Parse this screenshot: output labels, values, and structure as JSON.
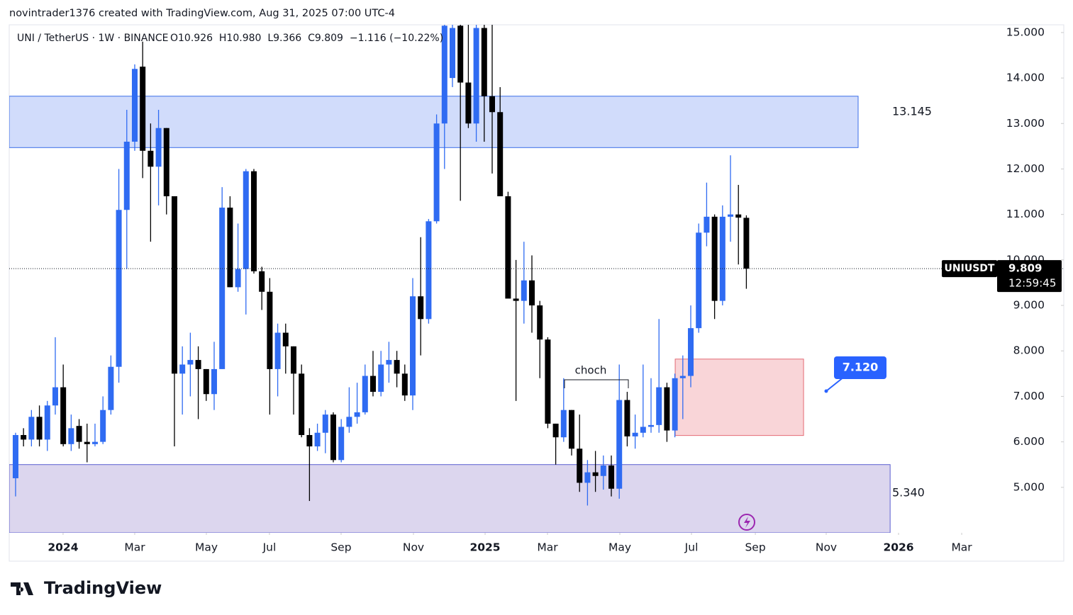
{
  "header": {
    "credit": "novintrader1376 created with TradingView.com, Aug 31, 2025 07:00 UTC-4",
    "brand": "TradingView"
  },
  "chart_data": {
    "type": "candlestick",
    "symbol": "UNI / TetherUS · 1W · BINANCE",
    "ohlc_text": "O10.926  H10.980  L9.366  C9.809  −1.116 (−10.22%)",
    "categories": [
      null,
      null,
      null,
      null,
      null,
      null,
      null,
      null,
      null,
      null,
      null,
      null,
      null,
      null,
      null,
      null,
      null,
      null,
      null,
      null,
      null,
      null,
      null,
      null,
      null,
      null,
      null,
      null,
      null,
      null,
      null,
      null,
      null,
      null,
      null,
      null,
      null,
      null,
      null,
      null,
      null,
      null,
      null,
      null,
      null,
      null,
      null,
      null,
      null,
      null,
      null,
      null,
      null,
      null,
      null,
      null,
      null,
      null,
      null,
      null,
      null,
      null,
      null,
      null,
      null,
      null,
      null,
      null,
      null,
      null,
      null,
      null,
      null,
      null,
      null,
      null,
      null,
      null,
      null,
      null,
      null,
      null,
      null,
      null,
      null,
      null,
      null,
      null,
      null,
      null,
      null,
      null,
      null
    ],
    "open": [
      5.2,
      6.15,
      6.05,
      6.55,
      6.05,
      6.8,
      7.2,
      5.95,
      6.35,
      6.0,
      5.95,
      6.0,
      6.7,
      7.65,
      11.1,
      12.6,
      14.25,
      12.4,
      12.05,
      12.9,
      11.4,
      7.5,
      7.7,
      7.8,
      7.6,
      7.05,
      7.6,
      11.15,
      9.4,
      9.8,
      11.95,
      9.75,
      9.3,
      7.6,
      8.4,
      8.1,
      7.5,
      6.15,
      5.9,
      6.2,
      6.6,
      5.6,
      6.33,
      6.55,
      6.65,
      7.45,
      7.1,
      7.7,
      7.8,
      7.5,
      7.02,
      9.2,
      8.7,
      10.85,
      13.0,
      14.0,
      15.15,
      13.9,
      13.0,
      15.1,
      13.6,
      13.25,
      11.4,
      9.15,
      9.1,
      9.55,
      9.0,
      8.25,
      6.4,
      6.1,
      6.7,
      5.85,
      5.1,
      5.33,
      5.25,
      5.48,
      4.97,
      6.92,
      6.12,
      6.2,
      6.33,
      6.37,
      7.2,
      6.25,
      7.4,
      7.45,
      8.5,
      10.6,
      10.95,
      9.1,
      10.95,
      11.0,
      10.926
    ],
    "high": [
      6.2,
      6.3,
      6.7,
      6.8,
      6.9,
      8.3,
      7.7,
      6.6,
      6.5,
      6.4,
      6.4,
      7.0,
      7.9,
      12.0,
      13.3,
      14.3,
      14.8,
      13.0,
      13.3,
      12.9,
      11.4,
      8.1,
      8.4,
      8.1,
      7.6,
      8.2,
      11.6,
      11.4,
      10.8,
      12.0,
      12.0,
      9.85,
      9.6,
      8.6,
      8.6,
      8.1,
      7.7,
      6.3,
      6.4,
      6.7,
      6.65,
      6.5,
      7.2,
      7.3,
      7.7,
      8.0,
      8.0,
      8.2,
      8.0,
      7.7,
      9.6,
      10.5,
      10.9,
      13.2,
      15.2,
      15.2,
      15.3,
      15.2,
      15.2,
      15.2,
      15.2,
      13.8,
      11.5,
      10.0,
      10.4,
      10.1,
      9.1,
      8.3,
      6.4,
      7.4,
      6.7,
      6.6,
      5.6,
      5.8,
      5.7,
      5.7,
      7.7,
      7.1,
      6.6,
      7.7,
      7.4,
      8.7,
      7.3,
      7.5,
      7.9,
      9.0,
      10.8,
      11.7,
      11.0,
      11.2,
      12.3,
      11.65,
      10.98
    ],
    "low": [
      4.8,
      5.9,
      5.9,
      5.9,
      5.8,
      6.6,
      5.9,
      5.8,
      5.85,
      5.55,
      5.9,
      5.95,
      6.6,
      7.3,
      9.8,
      12.4,
      11.8,
      10.4,
      11.2,
      11.0,
      5.9,
      6.6,
      7.0,
      6.5,
      6.9,
      6.7,
      7.6,
      9.4,
      9.3,
      8.8,
      9.7,
      8.9,
      6.6,
      7.0,
      7.5,
      6.6,
      6.1,
      4.7,
      5.8,
      5.75,
      5.55,
      5.55,
      6.2,
      6.4,
      6.6,
      7.0,
      7.0,
      7.3,
      7.2,
      6.9,
      6.7,
      7.9,
      8.6,
      10.8,
      12.0,
      13.8,
      11.3,
      12.9,
      12.6,
      12.6,
      11.9,
      11.4,
      9.2,
      6.9,
      8.6,
      8.4,
      7.4,
      6.3,
      5.5,
      6.0,
      5.7,
      4.9,
      4.6,
      4.9,
      4.95,
      4.8,
      4.75,
      5.9,
      5.85,
      6.1,
      6.2,
      6.2,
      6.0,
      6.1,
      6.5,
      7.2,
      8.4,
      10.3,
      8.7,
      9.0,
      10.4,
      9.9,
      9.366
    ],
    "close": [
      6.15,
      6.05,
      6.55,
      6.05,
      6.8,
      7.2,
      5.95,
      6.3,
      6.0,
      5.95,
      6.0,
      6.7,
      7.65,
      11.1,
      12.6,
      14.2,
      12.4,
      12.05,
      12.9,
      11.4,
      7.5,
      7.7,
      7.8,
      7.6,
      7.05,
      7.6,
      11.15,
      9.4,
      9.8,
      11.95,
      9.75,
      9.3,
      7.6,
      8.4,
      8.1,
      7.5,
      6.15,
      5.9,
      6.2,
      6.6,
      5.6,
      6.33,
      6.55,
      6.65,
      7.45,
      7.1,
      7.7,
      7.8,
      7.5,
      7.02,
      9.2,
      8.7,
      10.85,
      13.0,
      15.15,
      15.1,
      13.9,
      13.0,
      15.1,
      13.6,
      13.25,
      11.4,
      9.15,
      9.1,
      9.55,
      9.0,
      8.25,
      6.4,
      6.1,
      6.7,
      5.85,
      5.1,
      5.33,
      5.25,
      5.48,
      4.97,
      6.92,
      6.12,
      6.2,
      6.33,
      6.37,
      7.2,
      6.25,
      7.4,
      7.45,
      8.5,
      10.6,
      10.95,
      9.1,
      10.95,
      11.0,
      10.93,
      9.809
    ],
    "up_color": "#2f6bf2",
    "down_color": "#000000",
    "ylim": [
      4.0,
      15.17
    ],
    "yticks": [
      {
        "value": 5,
        "label": "5.000"
      },
      {
        "value": 6,
        "label": "6.000"
      },
      {
        "value": 7,
        "label": "7.000"
      },
      {
        "value": 8,
        "label": "8.000"
      },
      {
        "value": 9,
        "label": "9.000"
      },
      {
        "value": 10,
        "label": "10.000"
      },
      {
        "value": 11,
        "label": "11.000"
      },
      {
        "value": 12,
        "label": "12.000"
      },
      {
        "value": 13,
        "label": "13.000"
      },
      {
        "value": 14,
        "label": "14.000"
      },
      {
        "value": 15,
        "label": "15.000"
      }
    ],
    "xlim": [
      -0.8,
      131.96
    ],
    "xticks": [
      {
        "value": 5.98,
        "label": "2024"
      },
      {
        "value": 15.0,
        "label": "Mar"
      },
      {
        "value": 24.02,
        "label": "May"
      },
      {
        "value": 31.96,
        "label": "Jul"
      },
      {
        "value": 40.98,
        "label": "Sep"
      },
      {
        "value": 50.09,
        "label": "Nov"
      },
      {
        "value": 59.11,
        "label": "2025"
      },
      {
        "value": 66.96,
        "label": "Mar"
      },
      {
        "value": 76.07,
        "label": "May"
      },
      {
        "value": 85.09,
        "label": "Jul"
      },
      {
        "value": 93.13,
        "label": "Sep"
      },
      {
        "value": 102.05,
        "label": "Nov"
      },
      {
        "value": 111.16,
        "label": "2026"
      },
      {
        "value": 119.11,
        "label": "Mar"
      }
    ],
    "zones": [
      {
        "range": [
          12.47,
          13.6
        ],
        "xrange": [
          -0.8,
          106.07
        ],
        "color": "#d1dcfb",
        "stroke": "#3b6ee8"
      },
      {
        "range": [
          4.0,
          5.5
        ],
        "xrange": [
          -0.8,
          110.1
        ],
        "color": "#dcd6ee",
        "stroke": "#5b5fd0"
      },
      {
        "range": [
          6.14,
          7.82
        ],
        "xrange": [
          83.04,
          99.2
        ],
        "color": "#f9d5d8",
        "stroke": "#e36a74"
      }
    ],
    "level_labels": [
      "13.145",
      "5.340"
    ],
    "callout": "7.120",
    "annotation": "choch",
    "last_label": "UNIUSDT",
    "last_price": 9.809,
    "countdown": "12:59:45"
  }
}
